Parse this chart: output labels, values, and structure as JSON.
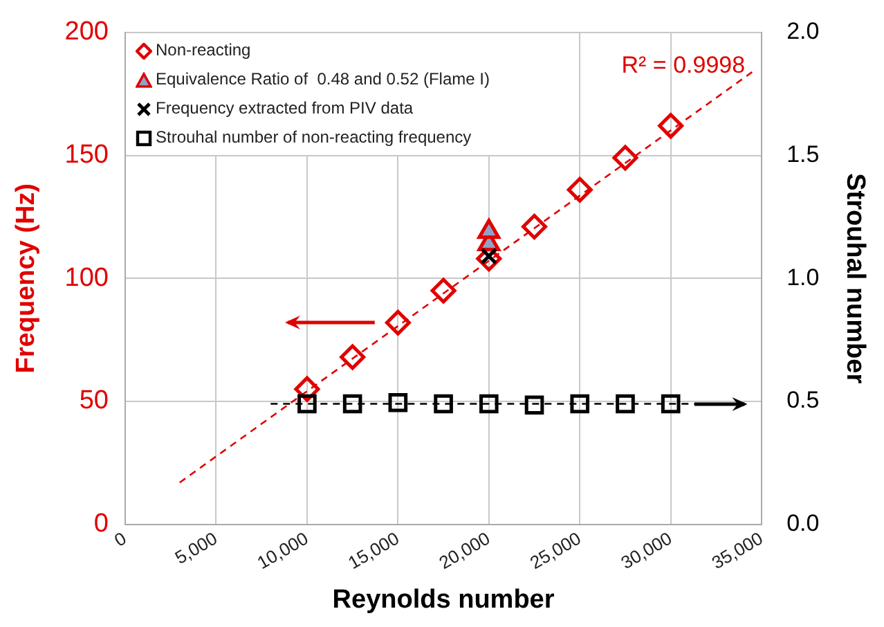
{
  "chart_data": {
    "type": "scatter",
    "xlabel": "Reynolds number",
    "ylabel": "Frequency (Hz)",
    "y2label": "Strouhal number",
    "xlim": [
      0,
      35000
    ],
    "xticks": [
      0,
      {
        "value": 5000,
        "label": "5,000"
      },
      {
        "value": 10000,
        "label": "10,000"
      },
      {
        "value": 15000,
        "label": "15,000"
      },
      {
        "value": 20000,
        "label": "20,000"
      },
      {
        "value": 25000,
        "label": "25,000"
      },
      {
        "value": 30000,
        "label": "30,000"
      },
      {
        "value": 35000,
        "label": "35,000"
      }
    ],
    "ylim": [
      0,
      200
    ],
    "yticks": [
      0,
      50,
      100,
      150,
      200
    ],
    "y2lim": [
      0,
      2
    ],
    "y2ticks": [
      {
        "value": 0,
        "label": "0.0"
      },
      {
        "value": 0.5,
        "label": "0.5"
      },
      {
        "value": 1,
        "label": "1.0"
      },
      {
        "value": 1.5,
        "label": "1.5"
      },
      {
        "value": 2,
        "label": "2.0"
      }
    ],
    "grid": true,
    "legend": "top left",
    "annotations": [
      "R² = 0.9998"
    ],
    "series": [
      {
        "type": "line",
        "color": "#e00000",
        "x": [
          3000,
          34500
        ],
        "values": [
          17,
          184
        ],
        "marker": "none",
        "line_style": "dashed"
      },
      {
        "type": "line",
        "color": "#000000",
        "axis": "y2",
        "x": [
          8000,
          31500
        ],
        "values": [
          0.49,
          0.49
        ],
        "marker": "none",
        "line_style": "dashed"
      },
      {
        "name": "Non-reacting",
        "type": "scatter",
        "color": "#e00000",
        "marker": "diamond",
        "x": [
          10000,
          12500,
          15000,
          17500,
          20000,
          22500,
          25000,
          27500,
          30000
        ],
        "values": [
          55,
          68,
          82,
          95,
          108,
          121,
          136,
          149,
          162
        ]
      },
      {
        "name": "Equivalence Ratio of  0.48 and 0.52 (Flame I)",
        "type": "scatter",
        "color": "#e00000",
        "marker": "triangle",
        "x": [
          20000,
          20000
        ],
        "values": [
          114,
          119
        ]
      },
      {
        "name": "Frequency extracted from PIV data",
        "type": "scatter",
        "color": "#000000",
        "marker": "cross",
        "x": [
          20000
        ],
        "values": [
          109
        ]
      },
      {
        "name": "Strouhal number of non-reacting frequency",
        "type": "scatter",
        "color": "#000000",
        "marker": "square",
        "axis": "y2",
        "x": [
          10000,
          12500,
          15000,
          17500,
          20000,
          22500,
          25000,
          27500,
          30000
        ],
        "values": [
          0.49,
          0.49,
          0.495,
          0.49,
          0.49,
          0.485,
          0.49,
          0.49,
          0.49
        ]
      }
    ]
  }
}
